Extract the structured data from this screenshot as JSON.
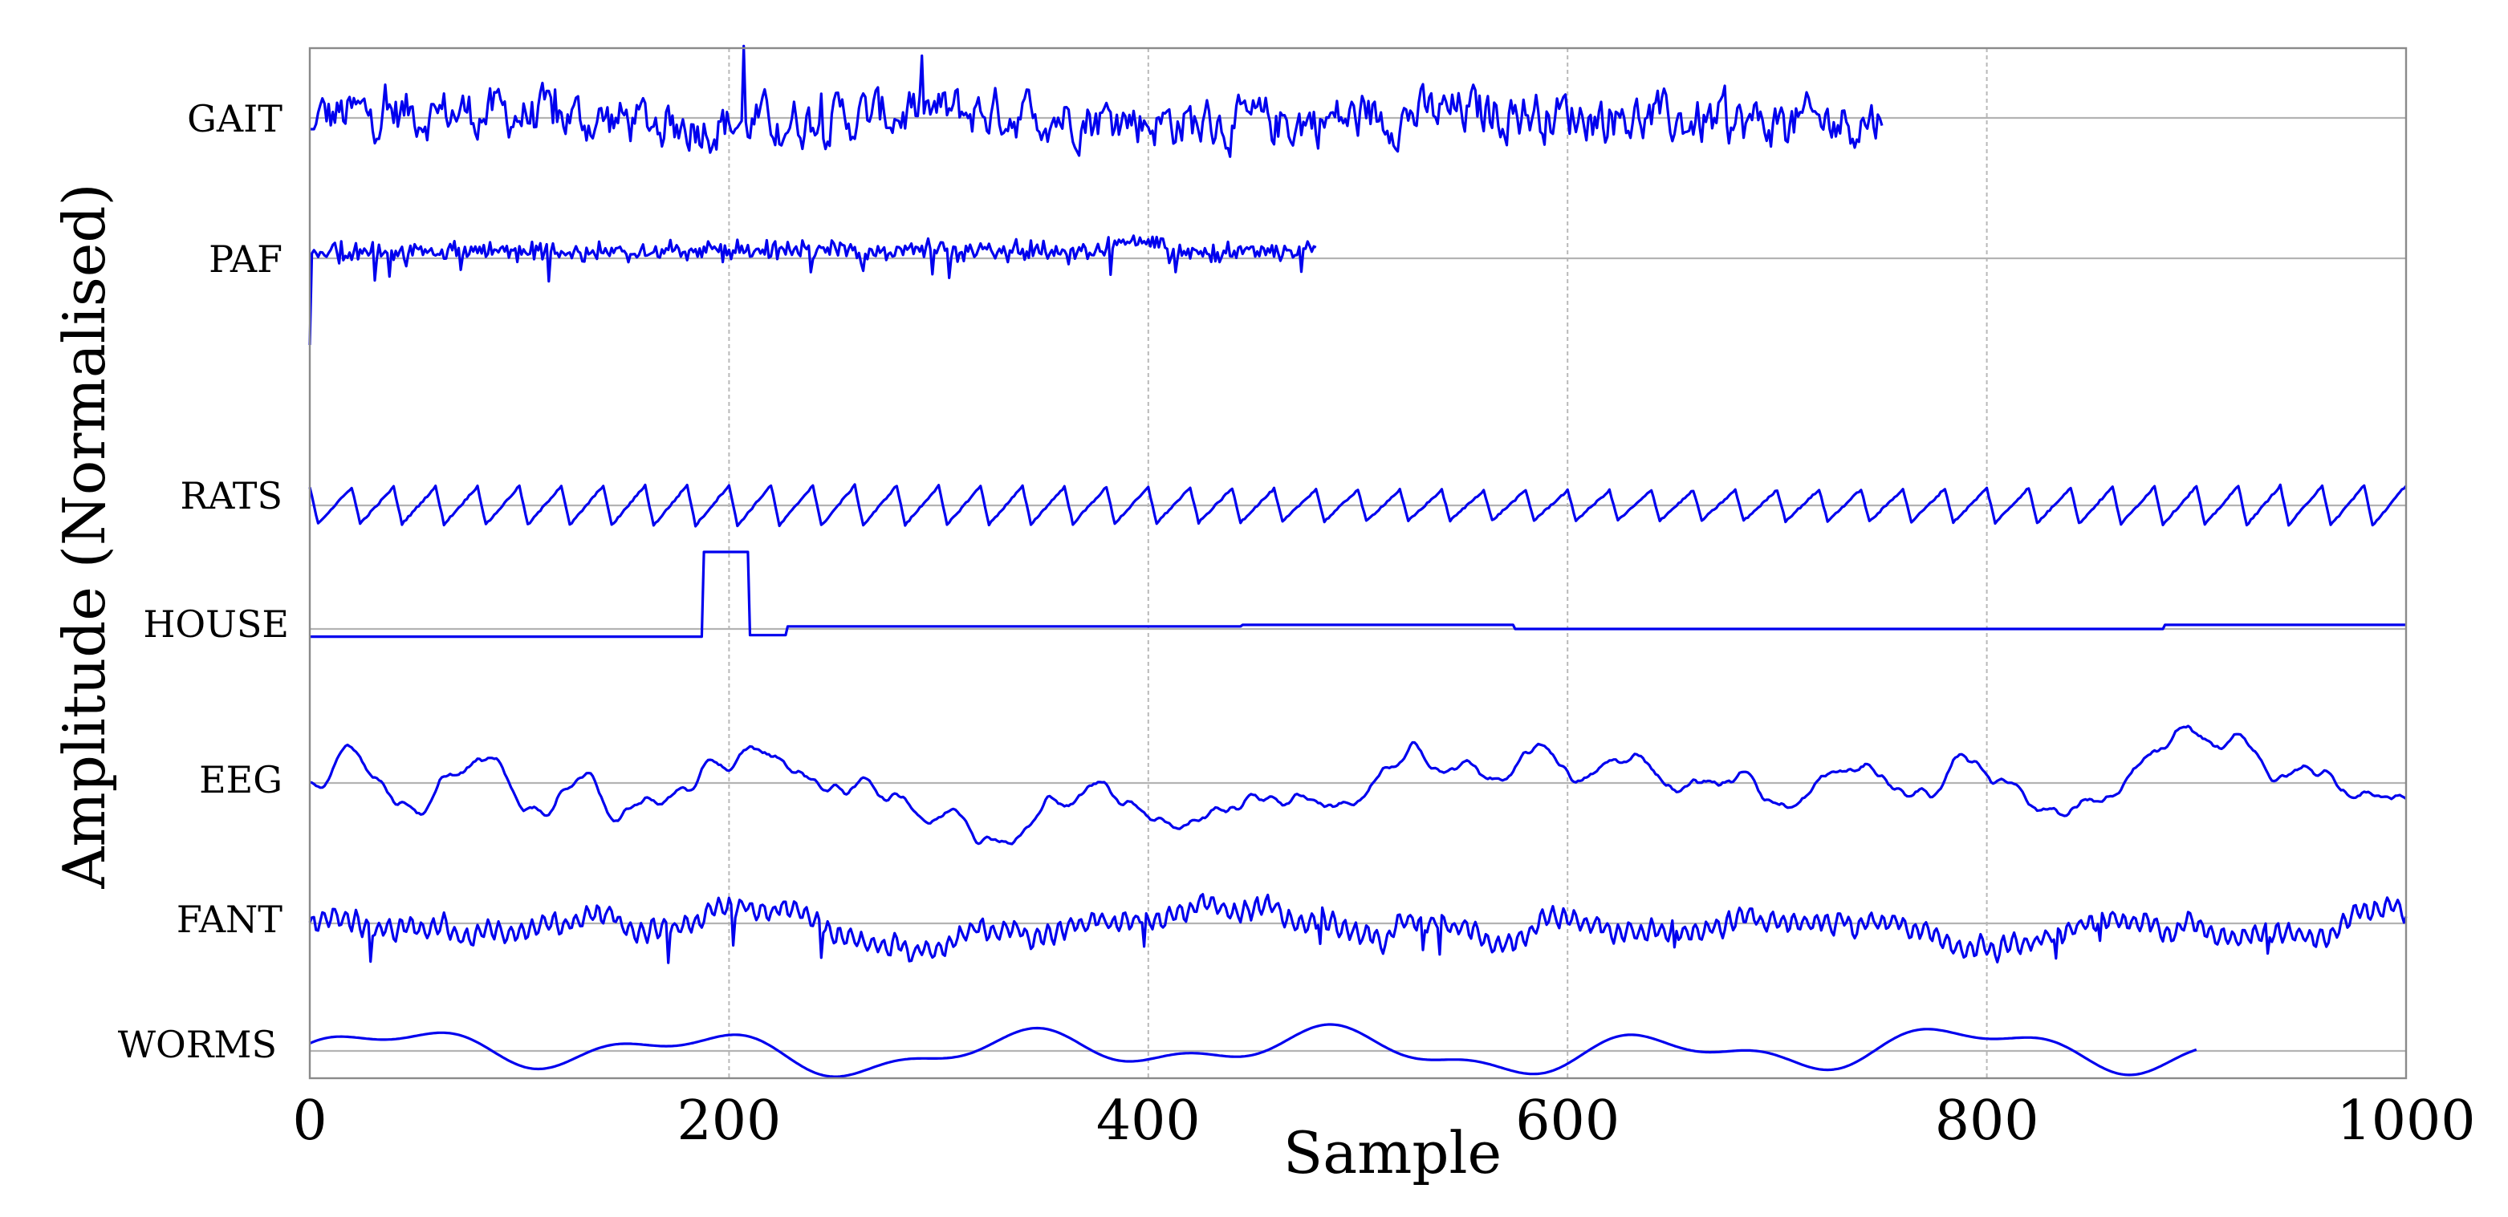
{
  "chart_data": {
    "type": "line",
    "title": "",
    "xlabel": "Sample",
    "ylabel": "Amplitude (Normalised)",
    "xlim": [
      0,
      1000
    ],
    "x_ticks": [
      0,
      200,
      400,
      600,
      800,
      1000
    ],
    "x_tick_labels": [
      "0",
      "200",
      "400",
      "600",
      "800",
      "1000"
    ],
    "grid": "vertical dashed at x ticks",
    "line_color": "#0000ee",
    "series": [
      {
        "name": "GAIT",
        "length": 750,
        "style": "noisy"
      },
      {
        "name": "PAF",
        "length": 480,
        "style": "spiky",
        "initial_transient": true
      },
      {
        "name": "RATS",
        "length": 1000,
        "style": "periodic",
        "period_samples": 20
      },
      {
        "name": "HOUSE",
        "length": 1000,
        "style": "step",
        "step_segments": [
          {
            "from": 0,
            "to": 188,
            "level": -0.15
          },
          {
            "from": 188,
            "to": 210,
            "level": 1.5
          },
          {
            "from": 210,
            "to": 228,
            "level": -0.12
          },
          {
            "from": 228,
            "to": 445,
            "level": 0.05
          },
          {
            "from": 445,
            "to": 575,
            "level": 0.08
          },
          {
            "from": 575,
            "to": 885,
            "level": 0.0
          },
          {
            "from": 885,
            "to": 1000,
            "level": 0.08
          }
        ]
      },
      {
        "name": "EEG",
        "length": 1000,
        "style": "smooth"
      },
      {
        "name": "FANT",
        "length": 1000,
        "style": "oscillatory"
      },
      {
        "name": "WORMS",
        "length": 900,
        "style": "slow wave"
      }
    ]
  }
}
